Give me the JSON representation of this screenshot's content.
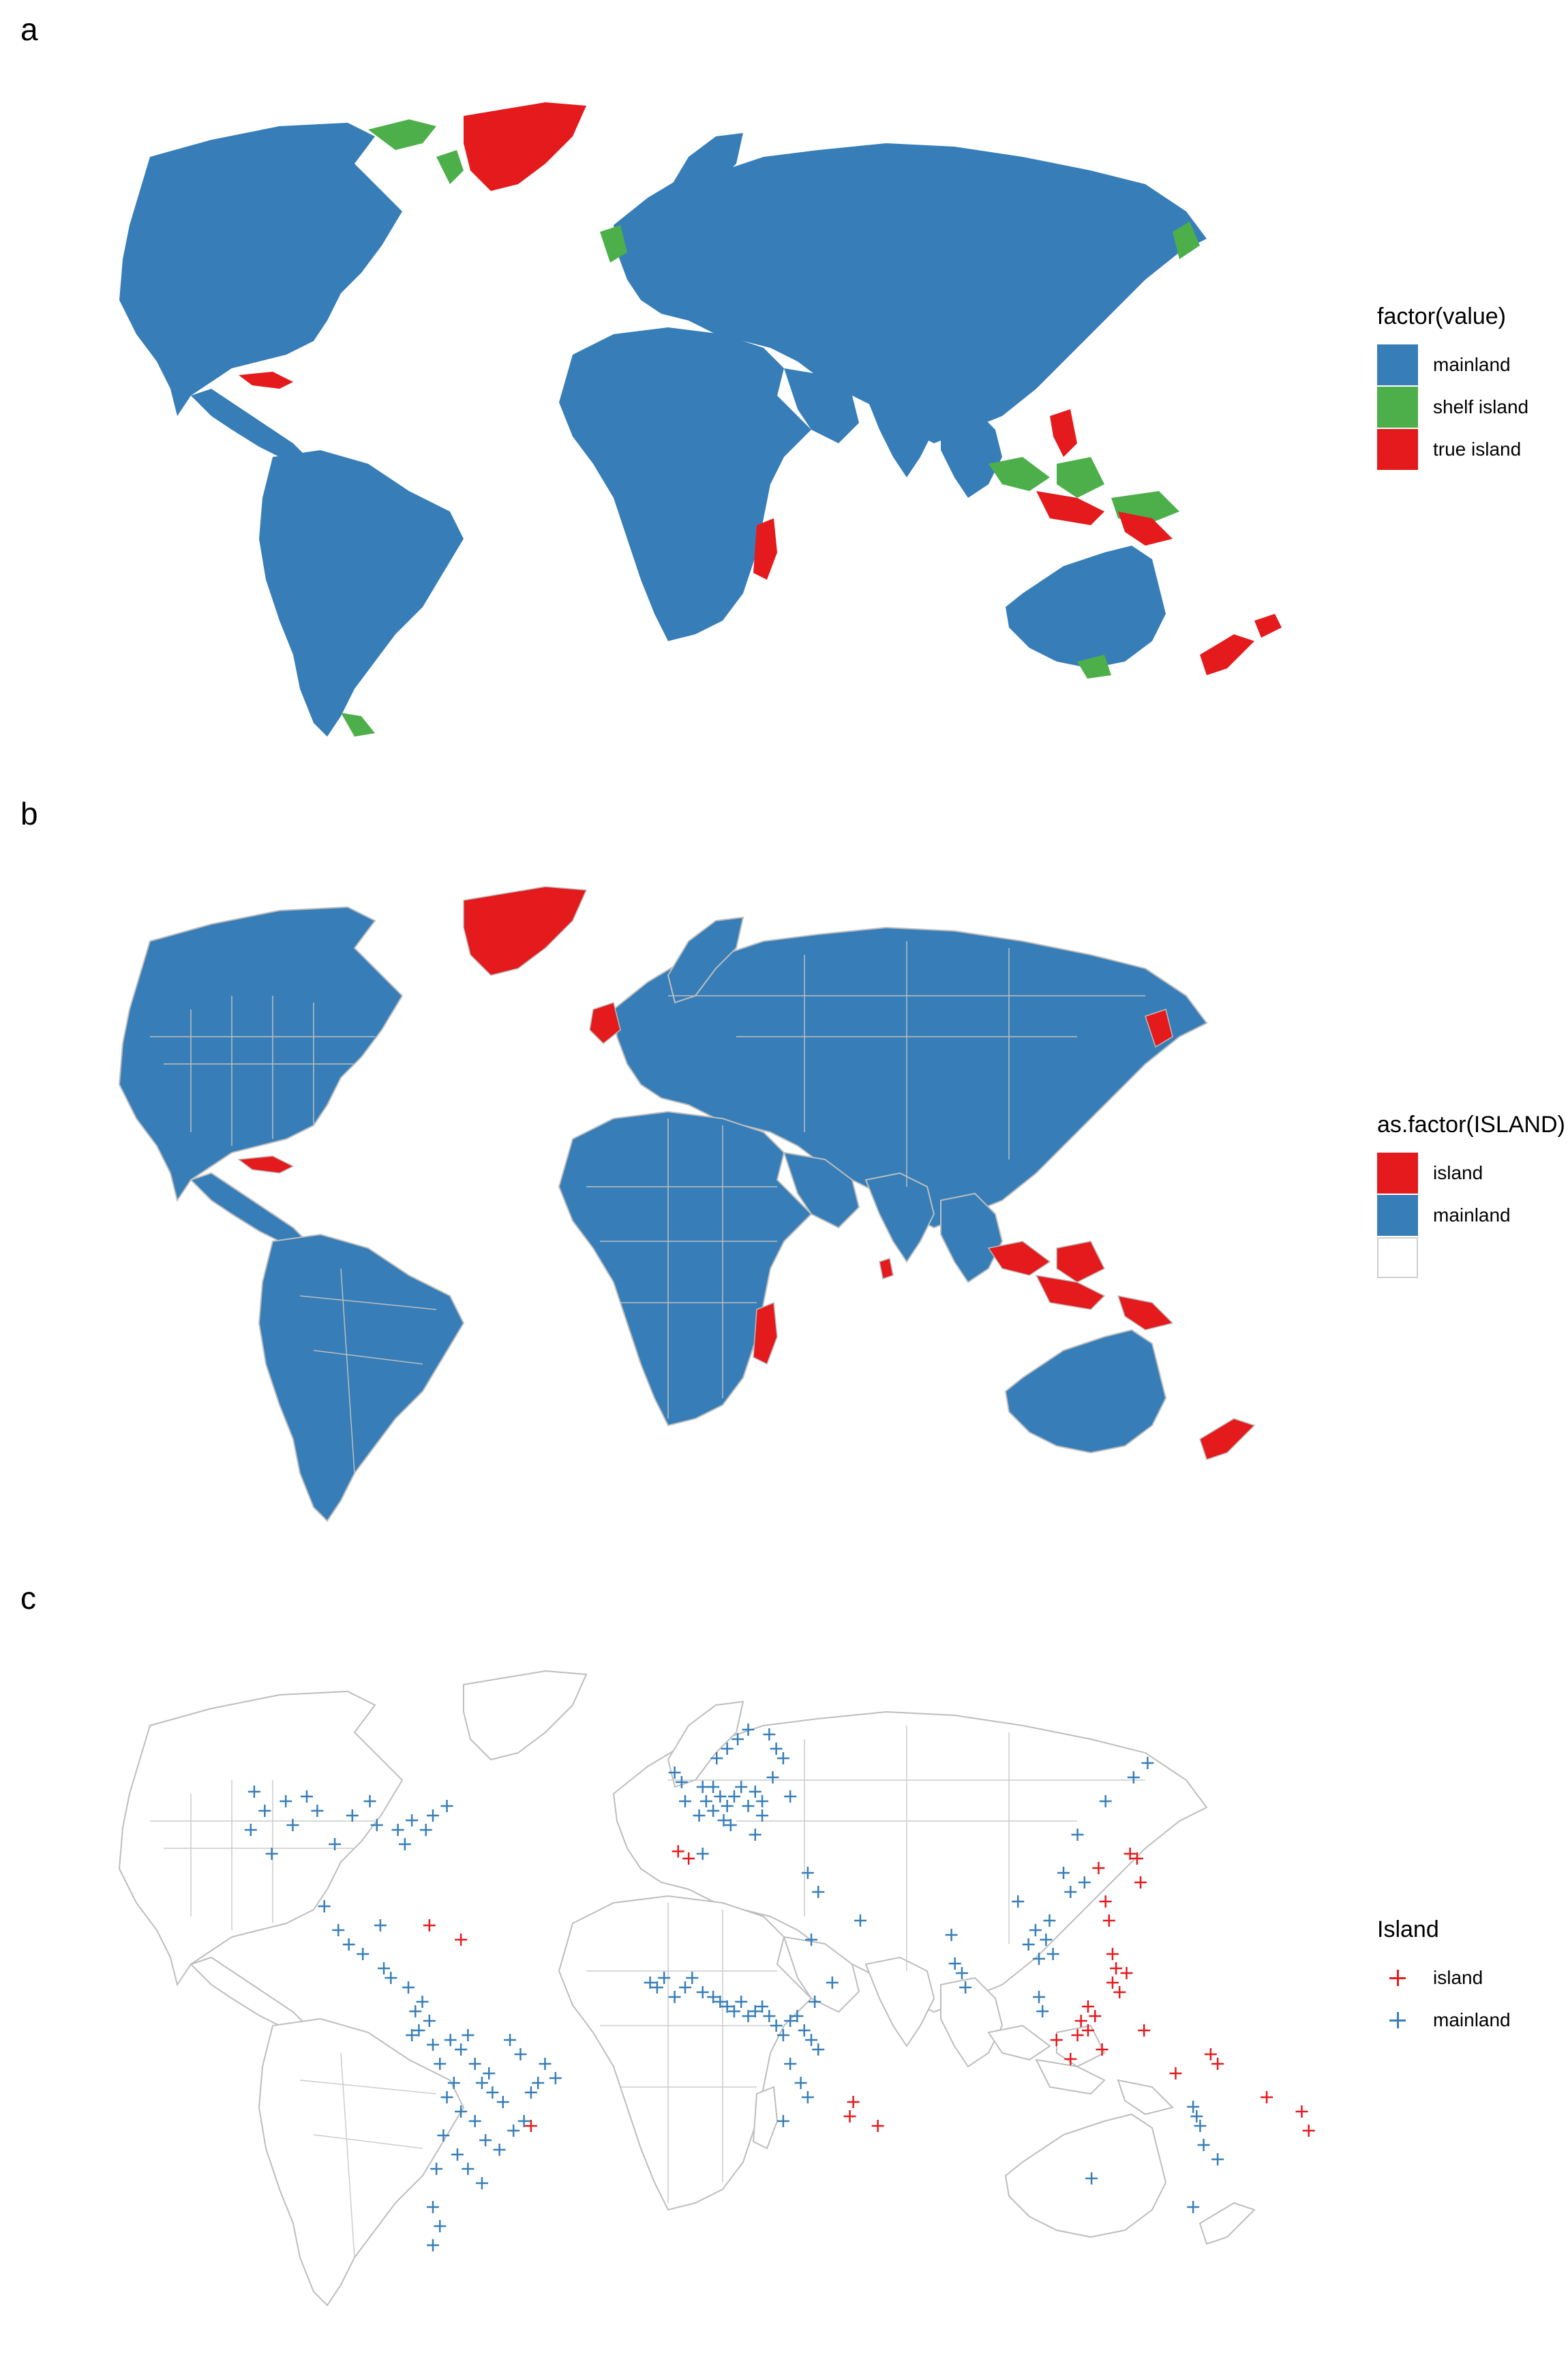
{
  "colors": {
    "mainland": "#377EB8",
    "shelf_island": "#4DAF4A",
    "true_island": "#E41A1C",
    "border": "#BDBDBD",
    "background": "#FFFFFF"
  },
  "panels": {
    "a": {
      "label": "a",
      "legend": {
        "title": "factor(value)",
        "items": [
          {
            "label": "mainland",
            "color": "#377EB8"
          },
          {
            "label": "shelf island",
            "color": "#4DAF4A"
          },
          {
            "label": "true island",
            "color": "#E41A1C"
          }
        ]
      }
    },
    "b": {
      "label": "b",
      "legend": {
        "title": "as.factor(ISLAND)",
        "items": [
          {
            "label": "island",
            "color": "#E41A1C"
          },
          {
            "label": "mainland",
            "color": "#377EB8"
          },
          {
            "label": "",
            "color": "#FFFFFF"
          }
        ]
      }
    },
    "c": {
      "label": "c",
      "legend": {
        "title": "Island",
        "items": [
          {
            "label": "island",
            "color": "#E41A1C"
          },
          {
            "label": "mainland",
            "color": "#377EB8"
          }
        ]
      }
    }
  },
  "map_data": {
    "sample_points": {
      "island": [
        [
          -73,
          21
        ],
        [
          -64,
          18
        ],
        [
          -2,
          36.5
        ],
        [
          1,
          35
        ],
        [
          47,
          -19
        ],
        [
          48,
          -16
        ],
        [
          55,
          -21
        ],
        [
          118,
          33
        ],
        [
          120,
          26
        ],
        [
          121,
          22
        ],
        [
          122,
          15
        ],
        [
          123,
          12
        ],
        [
          115,
          4
        ],
        [
          117,
          2
        ],
        [
          113,
          1
        ],
        [
          112,
          -2
        ],
        [
          110,
          -7
        ],
        [
          106,
          -3
        ],
        [
          131,
          -1
        ],
        [
          150,
          -6
        ],
        [
          152,
          -8
        ],
        [
          166,
          -15
        ],
        [
          176,
          -18
        ],
        [
          178,
          -22
        ],
        [
          127,
          36
        ],
        [
          129,
          35
        ],
        [
          126,
          11
        ],
        [
          124,
          7
        ],
        [
          122,
          9
        ],
        [
          115,
          -1
        ],
        [
          119,
          -5
        ],
        [
          -44,
          -21
        ],
        [
          140,
          -10
        ],
        [
          130,
          30
        ]
      ],
      "mainland": [
        [
          -123,
          49
        ],
        [
          -120,
          45
        ],
        [
          -112,
          42
        ],
        [
          -105,
          45
        ],
        [
          -95,
          44
        ],
        [
          -88,
          42
        ],
        [
          -82,
          41
        ],
        [
          -78,
          43
        ],
        [
          -72,
          44
        ],
        [
          -68,
          46
        ],
        [
          -100,
          38
        ],
        [
          -118,
          36
        ],
        [
          -108,
          48
        ],
        [
          -90,
          47
        ],
        [
          -80,
          38
        ],
        [
          -74,
          41
        ],
        [
          -124,
          41
        ],
        [
          -114,
          47
        ],
        [
          -103,
          25
        ],
        [
          -96,
          17
        ],
        [
          -92,
          15
        ],
        [
          -86,
          12
        ],
        [
          -84,
          10
        ],
        [
          -79,
          8
        ],
        [
          -77,
          3
        ],
        [
          -75,
          5
        ],
        [
          -73,
          1
        ],
        [
          -76,
          -1
        ],
        [
          -78,
          -2
        ],
        [
          -72,
          -4
        ],
        [
          -70,
          -8
        ],
        [
          -67,
          -3
        ],
        [
          -64,
          -5
        ],
        [
          -62,
          -2
        ],
        [
          -60,
          -8
        ],
        [
          -58,
          -12
        ],
        [
          -55,
          -14
        ],
        [
          -52,
          -16
        ],
        [
          -56,
          -10
        ],
        [
          -66,
          -12
        ],
        [
          -68,
          -15
        ],
        [
          -64,
          -18
        ],
        [
          -60,
          -20
        ],
        [
          -57,
          -24
        ],
        [
          -53,
          -26
        ],
        [
          -49,
          -22
        ],
        [
          -46,
          -20
        ],
        [
          -44,
          -14
        ],
        [
          -42,
          -12
        ],
        [
          -47,
          -6
        ],
        [
          -50,
          -3
        ],
        [
          -40,
          -8
        ],
        [
          -37,
          -11
        ],
        [
          -69,
          -23
        ],
        [
          -71,
          -30
        ],
        [
          -72,
          -38
        ],
        [
          -72,
          -46
        ],
        [
          -62,
          -30
        ],
        [
          -65,
          -27
        ],
        [
          -58,
          -33
        ],
        [
          -70,
          -42
        ],
        [
          -1,
          51
        ],
        [
          -3,
          53
        ],
        [
          0,
          47
        ],
        [
          5,
          50
        ],
        [
          8,
          50
        ],
        [
          10,
          48
        ],
        [
          12,
          46
        ],
        [
          14,
          48
        ],
        [
          16,
          50
        ],
        [
          18,
          46
        ],
        [
          20,
          49
        ],
        [
          22,
          47
        ],
        [
          11,
          43
        ],
        [
          13,
          42
        ],
        [
          8,
          45
        ],
        [
          4,
          44
        ],
        [
          6,
          47
        ],
        [
          9,
          56
        ],
        [
          12,
          58
        ],
        [
          15,
          60
        ],
        [
          18,
          62
        ],
        [
          24,
          61
        ],
        [
          26,
          58
        ],
        [
          28,
          56
        ],
        [
          25,
          52
        ],
        [
          30,
          48
        ],
        [
          22,
          44
        ],
        [
          20,
          40
        ],
        [
          5,
          36
        ],
        [
          38,
          28
        ],
        [
          35,
          32
        ],
        [
          36,
          18
        ],
        [
          50,
          22
        ],
        [
          -10,
          9
        ],
        [
          -8,
          8
        ],
        [
          -6,
          10
        ],
        [
          -3,
          6
        ],
        [
          0,
          8
        ],
        [
          2,
          10
        ],
        [
          5,
          7
        ],
        [
          8,
          6
        ],
        [
          10,
          5
        ],
        [
          12,
          4
        ],
        [
          14,
          3
        ],
        [
          16,
          5
        ],
        [
          18,
          2
        ],
        [
          20,
          3
        ],
        [
          22,
          4
        ],
        [
          24,
          2
        ],
        [
          26,
          0
        ],
        [
          28,
          -2
        ],
        [
          30,
          1
        ],
        [
          32,
          2
        ],
        [
          34,
          -1
        ],
        [
          36,
          -3
        ],
        [
          38,
          -5
        ],
        [
          30,
          -8
        ],
        [
          33,
          -12
        ],
        [
          35,
          -15
        ],
        [
          37,
          5
        ],
        [
          42,
          9
        ],
        [
          28,
          -20
        ],
        [
          79,
          11
        ],
        [
          77,
          13
        ],
        [
          80,
          8
        ],
        [
          76,
          19
        ],
        [
          98,
          17
        ],
        [
          101,
          14
        ],
        [
          103,
          18
        ],
        [
          105,
          15
        ],
        [
          100,
          20
        ],
        [
          104,
          22
        ],
        [
          95,
          26
        ],
        [
          110,
          28
        ],
        [
          114,
          30
        ],
        [
          108,
          32
        ],
        [
          120,
          47
        ],
        [
          128,
          52
        ],
        [
          132,
          55
        ],
        [
          112,
          40
        ],
        [
          102,
          3
        ],
        [
          101,
          6
        ],
        [
          145,
          -17
        ],
        [
          146,
          -19
        ],
        [
          147,
          -21
        ],
        [
          148,
          -25
        ],
        [
          152,
          -28
        ],
        [
          145,
          -38
        ],
        [
          116,
          -32
        ],
        [
          -99,
          20
        ],
        [
          -87,
          21
        ]
      ]
    }
  }
}
